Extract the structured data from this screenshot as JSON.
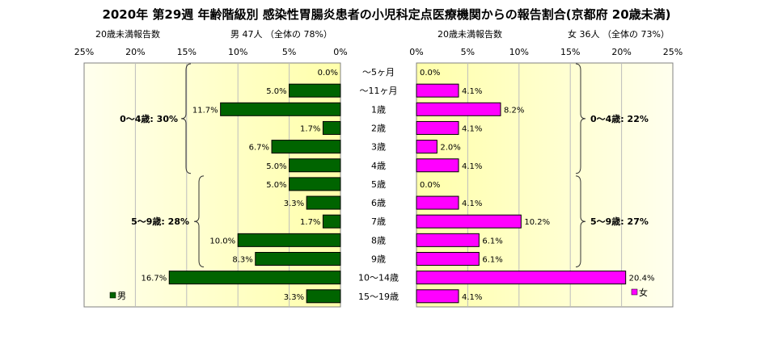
{
  "chart_data": {
    "type": "bar",
    "title": "2020年 第29週 年齢階級別 感染性胃腸炎患者の小児科定点医療機関からの報告割合(京都府 20歳未満)",
    "categories": [
      "～5ヶ月",
      "～11ヶ月",
      "1歳",
      "2歳",
      "3歳",
      "4歳",
      "5歳",
      "6歳",
      "7歳",
      "8歳",
      "9歳",
      "10～14歳",
      "15～19歳"
    ],
    "male": {
      "header_left": "20歳未満報告数",
      "header_right": "男 47人 （全体の 78%）",
      "legend": "男",
      "color": "#006400",
      "values": [
        0.0,
        5.0,
        11.7,
        1.7,
        6.7,
        5.0,
        5.0,
        3.3,
        1.7,
        10.0,
        8.3,
        16.7,
        3.3
      ],
      "value_labels": [
        "0.0%",
        "5.0%",
        "11.7%",
        "1.7%",
        "6.7%",
        "5.0%",
        "5.0%",
        "3.3%",
        "1.7%",
        "10.0%",
        "8.3%",
        "16.7%",
        "3.3%"
      ],
      "axis_ticks": [
        "25%",
        "20%",
        "15%",
        "10%",
        "5%",
        "0%"
      ],
      "xlim": [
        25,
        0
      ],
      "brace_labels": [
        "0～4歳: 30%",
        "5～9歳: 28%"
      ]
    },
    "female": {
      "header_left": "20歳未満報告数",
      "header_right": "女 36人 （全体の 73%）",
      "legend": "女",
      "color": "#ff00ff",
      "values": [
        0.0,
        4.1,
        8.2,
        4.1,
        2.0,
        4.1,
        0.0,
        4.1,
        10.2,
        6.1,
        6.1,
        20.4,
        4.1
      ],
      "value_labels": [
        "0.0%",
        "4.1%",
        "8.2%",
        "4.1%",
        "2.0%",
        "4.1%",
        "0.0%",
        "4.1%",
        "10.2%",
        "6.1%",
        "6.1%",
        "20.4%",
        "4.1%"
      ],
      "axis_ticks": [
        "0%",
        "5%",
        "10%",
        "15%",
        "20%",
        "25%"
      ],
      "xlim": [
        0,
        25
      ],
      "brace_labels": [
        "0～4歳: 22%",
        "5～9歳: 27%"
      ]
    },
    "grid": true,
    "plot_background": "#ffffcc"
  }
}
